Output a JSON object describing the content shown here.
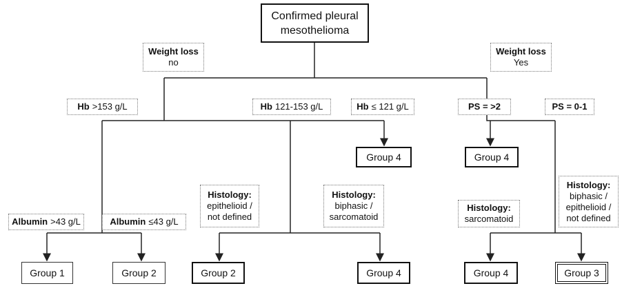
{
  "root": "Confirmed pleural mesothelioma",
  "conditions": [
    {
      "bold": "Weight loss",
      "text": "no"
    },
    {
      "bold": "Weight loss",
      "text": "Yes"
    },
    {
      "bold": "Hb",
      "text": ">153 g/L"
    },
    {
      "bold": "Hb",
      "text": "121-153 g/L"
    },
    {
      "bold": "Hb",
      "text": "≤ 121 g/L"
    },
    {
      "bold": "PS = >2"
    },
    {
      "bold": "PS = 0-1"
    },
    {
      "bold": "Albumin",
      "text": ">43 g/L"
    },
    {
      "bold": "Albumin",
      "text": "≤43 g/L"
    },
    {
      "bold": "Histology:",
      "text": "epithelioid / not defined"
    },
    {
      "bold": "Histology:",
      "text": "biphasic / sarcomatoid"
    },
    {
      "bold": "Histology:",
      "text": "sarcomatoid"
    },
    {
      "bold": "Histology:",
      "text": "biphasic / epithelioid / not defined"
    }
  ],
  "outcomes": [
    "Group 4",
    "Group 4",
    "Group 1",
    "Group 2",
    "Group 2",
    "Group 4",
    "Group 4",
    "Group 3"
  ]
}
